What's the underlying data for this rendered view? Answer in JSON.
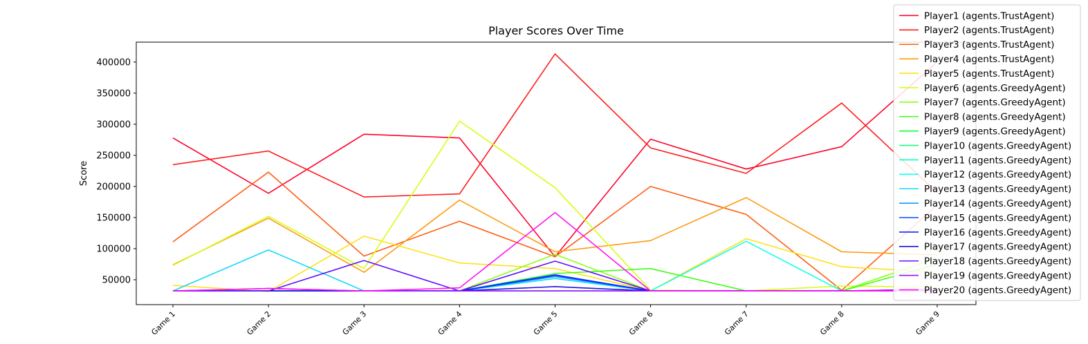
{
  "chart_data": {
    "type": "line",
    "title": "Player Scores Over Time",
    "xlabel": "",
    "ylabel": "Score",
    "categories": [
      "Game 1",
      "Game 2",
      "Game 3",
      "Game 4",
      "Game 5",
      "Game 6",
      "Game 7",
      "Game 8",
      "Game 9"
    ],
    "ylim": [
      10000,
      432000
    ],
    "yticks": [
      50000,
      100000,
      150000,
      200000,
      250000,
      300000,
      350000,
      400000
    ],
    "ytick_labels": [
      "50000",
      "100000",
      "150000",
      "200000",
      "250000",
      "300000",
      "350000",
      "400000"
    ],
    "grid": false,
    "legend_position": "top-right",
    "series": [
      {
        "name": "Player1 (agents.TrustAgent)",
        "color": "#ff0029",
        "values": [
          278000,
          189000,
          284000,
          278000,
          87000,
          276000,
          228000,
          264000,
          400000
        ]
      },
      {
        "name": "Player2 (agents.TrustAgent)",
        "color": "#ff1a1a",
        "values": [
          235000,
          257000,
          183000,
          188000,
          413000,
          262000,
          221000,
          334000,
          190000
        ]
      },
      {
        "name": "Player3 (agents.TrustAgent)",
        "color": "#ff5a10",
        "values": [
          111000,
          223000,
          88000,
          144000,
          87000,
          200000,
          155000,
          33000,
          170000
        ]
      },
      {
        "name": "Player4 (agents.TrustAgent)",
        "color": "#ff9a10",
        "values": [
          74000,
          149000,
          62000,
          178000,
          95000,
          113000,
          182000,
          95000,
          90000
        ]
      },
      {
        "name": "Player5 (agents.TrustAgent)",
        "color": "#ffe018",
        "values": [
          41000,
          31000,
          120000,
          77000,
          68000,
          32000,
          116000,
          71000,
          62000
        ]
      },
      {
        "name": "Player6 (agents.GreedyAgent)",
        "color": "#d4ff10",
        "values": [
          73000,
          152000,
          68000,
          305000,
          198000,
          33000,
          32000,
          40000,
          38000
        ]
      },
      {
        "name": "Player7 (agents.GreedyAgent)",
        "color": "#8cff10",
        "values": [
          32000,
          32000,
          32000,
          32000,
          91000,
          32000,
          32000,
          32000,
          85000
        ]
      },
      {
        "name": "Player8 (agents.GreedyAgent)",
        "color": "#3cff10",
        "values": [
          32000,
          32000,
          32000,
          32000,
          60000,
          68000,
          32000,
          32000,
          75000
        ]
      },
      {
        "name": "Player9 (agents.GreedyAgent)",
        "color": "#10ff3a",
        "values": [
          32000,
          32000,
          32000,
          32000,
          32000,
          32000,
          32000,
          32000,
          32000
        ]
      },
      {
        "name": "Player10 (agents.GreedyAgent)",
        "color": "#10ff7a",
        "values": [
          32000,
          32000,
          32000,
          32000,
          32000,
          32000,
          32000,
          32000,
          32000
        ]
      },
      {
        "name": "Player11 (agents.GreedyAgent)",
        "color": "#10ffba",
        "values": [
          32000,
          32000,
          32000,
          32000,
          32000,
          32000,
          32000,
          32000,
          32000
        ]
      },
      {
        "name": "Player12 (agents.GreedyAgent)",
        "color": "#10fff0",
        "values": [
          32000,
          32000,
          32000,
          32000,
          32000,
          32000,
          112000,
          32000,
          32000
        ]
      },
      {
        "name": "Player13 (agents.GreedyAgent)",
        "color": "#10d8ff",
        "values": [
          32000,
          98000,
          32000,
          32000,
          52000,
          32000,
          32000,
          32000,
          32000
        ]
      },
      {
        "name": "Player14 (agents.GreedyAgent)",
        "color": "#109cff",
        "values": [
          32000,
          32000,
          32000,
          32000,
          55000,
          32000,
          32000,
          32000,
          32000
        ]
      },
      {
        "name": "Player15 (agents.GreedyAgent)",
        "color": "#105cff",
        "values": [
          32000,
          32000,
          32000,
          32000,
          58000,
          32000,
          32000,
          32000,
          32000
        ]
      },
      {
        "name": "Player16 (agents.GreedyAgent)",
        "color": "#1020ff",
        "values": [
          32000,
          32000,
          32000,
          32000,
          57000,
          32000,
          32000,
          32000,
          32000
        ]
      },
      {
        "name": "Player17 (agents.GreedyAgent)",
        "color": "#1a10e0",
        "values": [
          32000,
          32000,
          32000,
          32000,
          39000,
          32000,
          32000,
          32000,
          32000
        ]
      },
      {
        "name": "Player18 (agents.GreedyAgent)",
        "color": "#6010ff",
        "values": [
          32000,
          32000,
          81000,
          32000,
          80000,
          32000,
          32000,
          32000,
          32000
        ]
      },
      {
        "name": "Player19 (agents.GreedyAgent)",
        "color": "#a010ff",
        "values": [
          32000,
          36000,
          32000,
          32000,
          32000,
          32000,
          32000,
          32000,
          35000
        ]
      },
      {
        "name": "Player20 (agents.GreedyAgent)",
        "color": "#ff10f0",
        "values": [
          32000,
          36000,
          32000,
          37000,
          158000,
          32000,
          32000,
          32000,
          32000
        ]
      }
    ]
  }
}
